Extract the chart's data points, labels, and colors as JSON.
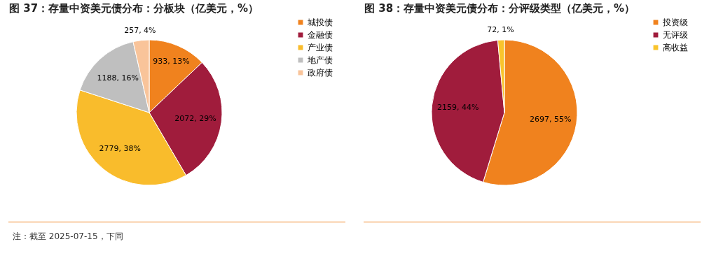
{
  "chart_data": [
    {
      "type": "pie",
      "title": "图 37：存量中资美元债分布：分板块（亿美元，%）",
      "categories": [
        "城投债",
        "金融债",
        "产业债",
        "地产债",
        "政府债"
      ],
      "values": [
        933,
        2072,
        2779,
        1188,
        257
      ],
      "colors": [
        "#f0821e",
        "#a01c3c",
        "#f9bc2c",
        "#bfbfbf",
        "#f9c49a"
      ],
      "value_labels": [
        "933, 13%",
        "2072, 29%",
        "2779, 38%",
        "1188, 16%",
        "257, 4%"
      ],
      "legend": "right",
      "annotations": [
        "注：截至 2025-07-15，下同"
      ]
    },
    {
      "type": "pie",
      "title": "图 38：存量中资美元债分布：分评级类型（亿美元，%）",
      "categories": [
        "投资级",
        "无评级",
        "高收益"
      ],
      "values": [
        2697,
        2159,
        72
      ],
      "colors": [
        "#f0821e",
        "#a01c3c",
        "#f9c42c"
      ],
      "value_labels": [
        "2697, 55%",
        "2159, 44%",
        "72, 1%"
      ],
      "legend": "right"
    }
  ]
}
